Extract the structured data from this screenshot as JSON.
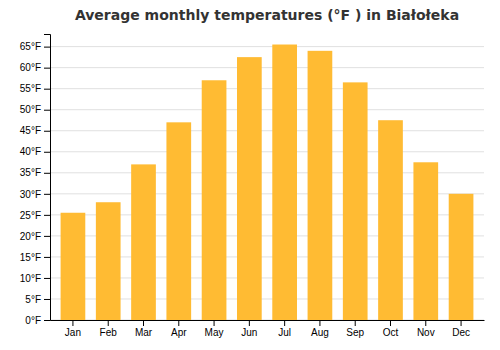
{
  "chart_data": {
    "type": "bar",
    "title": "Average monthly temperatures (°F ) in Białołeka",
    "categories": [
      "Jan",
      "Feb",
      "Mar",
      "Apr",
      "May",
      "Jun",
      "Jul",
      "Aug",
      "Sep",
      "Oct",
      "Nov",
      "Dec"
    ],
    "values": [
      25.5,
      28.0,
      37.0,
      47.0,
      57.0,
      62.5,
      65.5,
      64.0,
      56.5,
      47.5,
      37.5,
      30.0
    ],
    "color": "#FFBB33",
    "ylim": [
      0,
      68
    ],
    "yticks": [
      {
        "value": 0,
        "label": "0°F"
      },
      {
        "value": 5,
        "label": "5°F"
      },
      {
        "value": 10,
        "label": "10°F"
      },
      {
        "value": 15,
        "label": "15°F"
      },
      {
        "value": 20,
        "label": "20°F"
      },
      {
        "value": 25,
        "label": "25°F"
      },
      {
        "value": 30,
        "label": "30°F"
      },
      {
        "value": 35,
        "label": "35°F"
      },
      {
        "value": 40,
        "label": "40°F"
      },
      {
        "value": 45,
        "label": "45°F"
      },
      {
        "value": 50,
        "label": "50°F"
      },
      {
        "value": 55,
        "label": "55°F"
      },
      {
        "value": 60,
        "label": "60°F"
      },
      {
        "value": 65,
        "label": "65°F"
      }
    ],
    "grid": true
  }
}
